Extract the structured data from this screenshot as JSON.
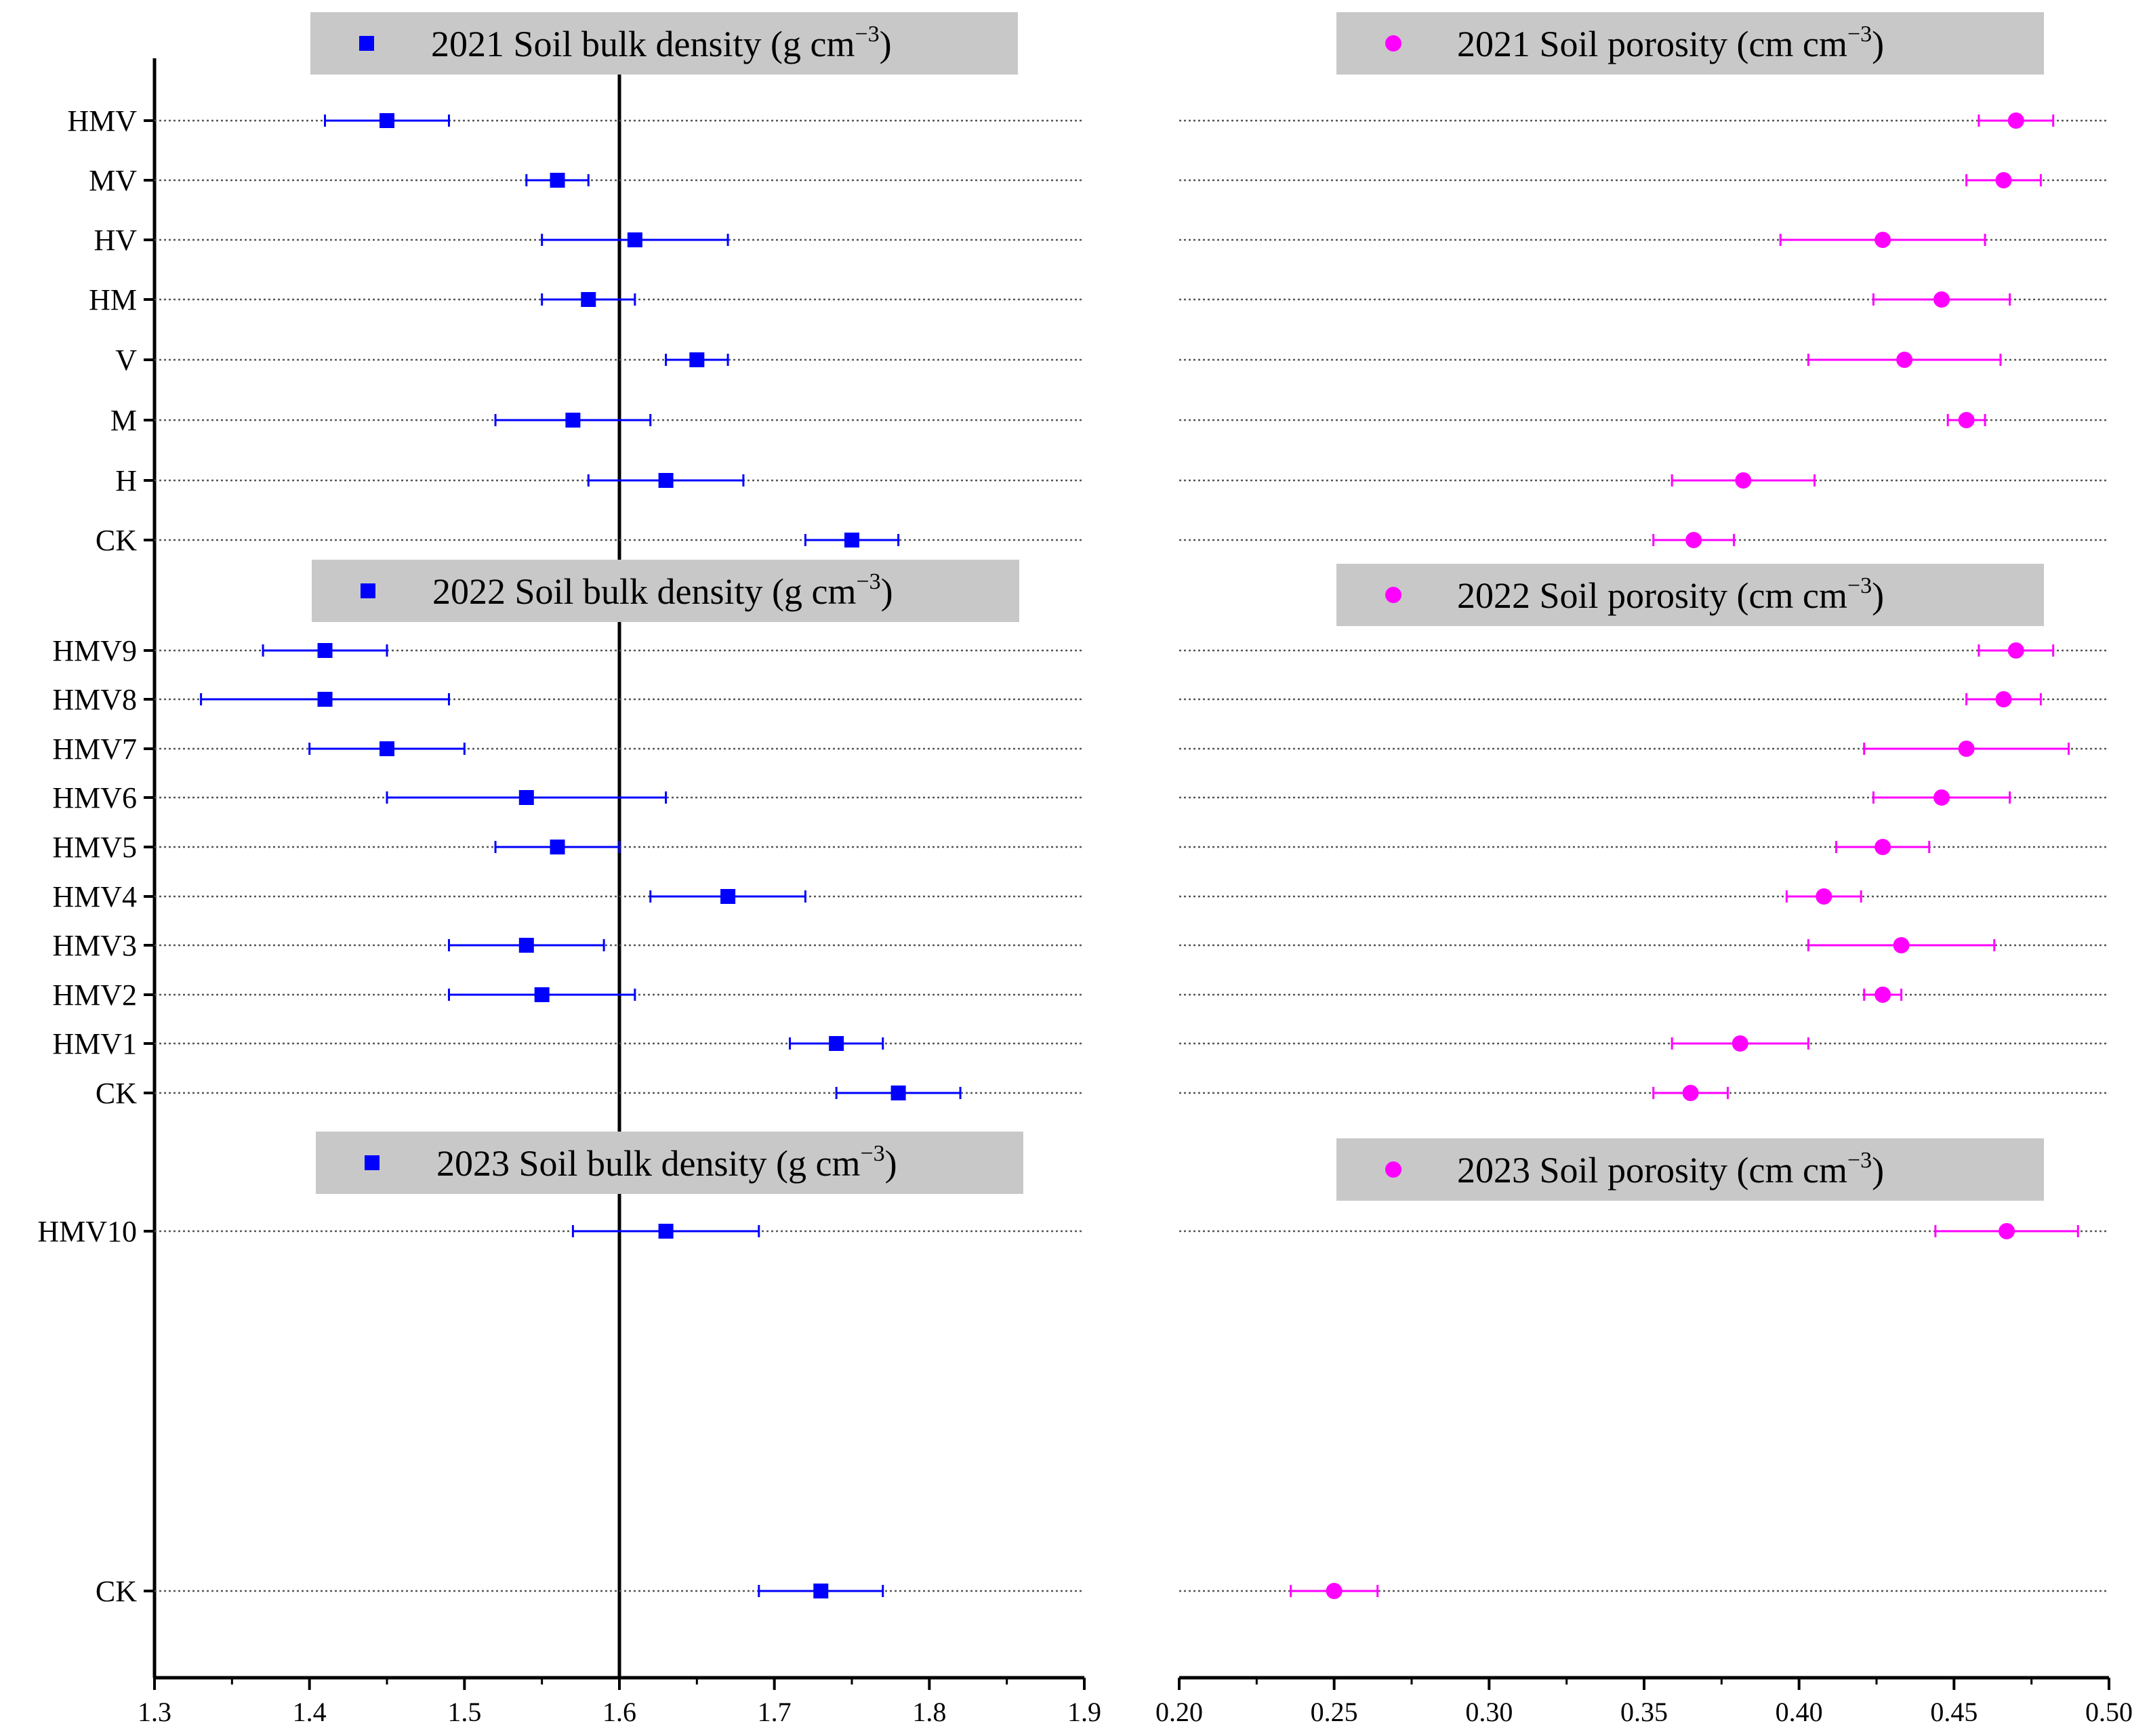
{
  "bulk_color": "#0000ff",
  "porosity_color": "#ff00ff",
  "panel_bg": "#c8c8c8",
  "chart_data": [
    {
      "type": "scatter",
      "title": "2021 Soil bulk density (g cm⁻³)",
      "title_text": "2021 Soil bulk density (g cm",
      "title_sup": "−3",
      "title_close": ")",
      "axis": "bulk",
      "marker": "square",
      "categories": [
        "HMV",
        "MV",
        "HV",
        "HM",
        "V",
        "M",
        "H",
        "CK"
      ],
      "values": [
        1.45,
        1.56,
        1.61,
        1.58,
        1.65,
        1.57,
        1.63,
        1.75
      ],
      "errors": [
        0.04,
        0.02,
        0.06,
        0.03,
        0.02,
        0.05,
        0.05,
        0.03
      ]
    },
    {
      "type": "scatter",
      "title": "2021 Soil porosity (cm cm⁻³)",
      "title_text": "2021 Soil porosity (cm cm",
      "title_sup": "−3",
      "title_close": ")",
      "axis": "porosity",
      "marker": "circle",
      "categories": [
        "HMV",
        "MV",
        "HV",
        "HM",
        "V",
        "M",
        "H",
        "CK"
      ],
      "values": [
        0.47,
        0.466,
        0.427,
        0.446,
        0.434,
        0.454,
        0.382,
        0.366
      ],
      "errors": [
        0.012,
        0.012,
        0.033,
        0.022,
        0.031,
        0.006,
        0.023,
        0.013
      ]
    },
    {
      "type": "scatter",
      "title": "2022 Soil bulk density (g cm⁻³)",
      "title_text": "2022 Soil bulk density (g cm",
      "title_sup": "−3",
      "title_close": ")",
      "axis": "bulk",
      "marker": "square",
      "categories": [
        "HMV9",
        "HMV8",
        "HMV7",
        "HMV6",
        "HMV5",
        "HMV4",
        "HMV3",
        "HMV2",
        "HMV1",
        "CK"
      ],
      "values": [
        1.41,
        1.41,
        1.45,
        1.54,
        1.56,
        1.67,
        1.54,
        1.55,
        1.74,
        1.78
      ],
      "errors": [
        0.04,
        0.08,
        0.05,
        0.09,
        0.04,
        0.05,
        0.05,
        0.06,
        0.03,
        0.04
      ]
    },
    {
      "type": "scatter",
      "title": "2022 Soil porosity (cm cm⁻³)",
      "title_text": "2022 Soil porosity (cm cm",
      "title_sup": "−3",
      "title_close": ")",
      "axis": "porosity",
      "marker": "circle",
      "categories": [
        "HMV9",
        "HMV8",
        "HMV7",
        "HMV6",
        "HMV5",
        "HMV4",
        "HMV3",
        "HMV2",
        "HMV1",
        "CK"
      ],
      "values": [
        0.47,
        0.466,
        0.454,
        0.446,
        0.427,
        0.408,
        0.433,
        0.427,
        0.381,
        0.365
      ],
      "errors": [
        0.012,
        0.012,
        0.033,
        0.022,
        0.015,
        0.012,
        0.03,
        0.006,
        0.022,
        0.012
      ]
    },
    {
      "type": "scatter",
      "title": "2023 Soil bulk density (g cm⁻³)",
      "title_text": "2023 Soil bulk density (g cm",
      "title_sup": "−3",
      "title_close": ")",
      "axis": "bulk",
      "marker": "square",
      "categories": [
        "HMV10",
        "CK"
      ],
      "values": [
        1.63,
        1.73
      ],
      "errors": [
        0.06,
        0.04
      ]
    },
    {
      "type": "scatter",
      "title": "2023 Soil porosity (cm cm⁻³)",
      "title_text": "2023 Soil porosity (cm cm",
      "title_sup": "−3",
      "title_close": ")",
      "axis": "porosity",
      "marker": "circle",
      "categories": [
        "HMV10",
        "CK"
      ],
      "values": [
        0.467,
        0.25
      ],
      "errors": [
        0.023,
        0.014
      ]
    }
  ],
  "axes": {
    "bulk": {
      "xlim": [
        1.3,
        1.9
      ],
      "ticks": [
        "1.3",
        "1.4",
        "1.5",
        "1.6",
        "1.7",
        "1.8",
        "1.9"
      ],
      "reference_line": 1.6
    },
    "porosity": {
      "xlim": [
        0.2,
        0.5
      ],
      "ticks": [
        "0.20",
        "0.25",
        "0.30",
        "0.35",
        "0.40",
        "0.45",
        "0.50"
      ]
    }
  }
}
